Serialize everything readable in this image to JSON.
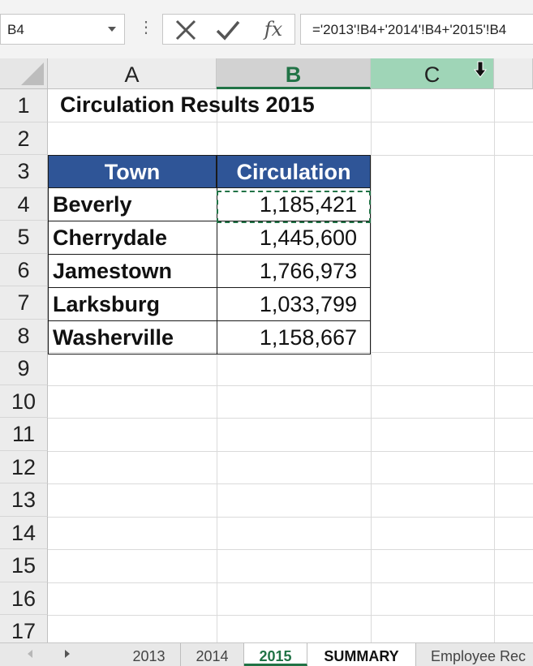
{
  "formula_bar": {
    "name_box": "B4",
    "formula": "='2013'!B4+'2014'!B4+'2015'!B4",
    "fx_label": "fx"
  },
  "columns": [
    "A",
    "B",
    "C"
  ],
  "rows": [
    "1",
    "2",
    "3",
    "4",
    "5",
    "6",
    "7",
    "8",
    "9",
    "10",
    "11",
    "12",
    "13",
    "14",
    "15",
    "16",
    "17"
  ],
  "sheet": {
    "title": "Circulation Results 2015",
    "table_headers": {
      "town": "Town",
      "circulation": "Circulation"
    },
    "table_rows": [
      {
        "town": "Beverly",
        "circulation": "1,185,421"
      },
      {
        "town": "Cherrydale",
        "circulation": "1,445,600"
      },
      {
        "town": "Jamestown",
        "circulation": "1,766,973"
      },
      {
        "town": "Larksburg",
        "circulation": "1,033,799"
      },
      {
        "town": "Washerville",
        "circulation": "1,158,667"
      }
    ]
  },
  "tabs": [
    "2013",
    "2014",
    "2015",
    "SUMMARY",
    "Employee Rec"
  ],
  "active_tab": "2015",
  "colors": {
    "accent": "#217346",
    "header_fill": "#2f5597"
  }
}
